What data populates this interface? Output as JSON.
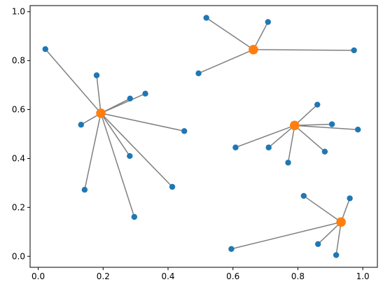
{
  "chart_data": {
    "type": "scatter",
    "title": "",
    "xlabel": "",
    "ylabel": "",
    "xlim": [
      -0.025,
      1.045
    ],
    "ylim": [
      -0.045,
      1.025
    ],
    "xticks": [
      0.0,
      0.2,
      0.4,
      0.6,
      0.8,
      1.0
    ],
    "yticks": [
      0.0,
      0.2,
      0.4,
      0.6,
      0.8,
      1.0
    ],
    "xtick_labels": [
      "0.0",
      "0.2",
      "0.4",
      "0.6",
      "0.8",
      "1.0"
    ],
    "ytick_labels": [
      "0.0",
      "0.2",
      "0.4",
      "0.6",
      "0.8",
      "1.0"
    ],
    "grid": false,
    "colors": {
      "points": "#1f77b4",
      "centers": "#ff7f0e",
      "edges": "#808080"
    },
    "clusters": [
      {
        "center": [
          0.193,
          0.585
        ],
        "points": [
          [
            0.022,
            0.847
          ],
          [
            0.18,
            0.74
          ],
          [
            0.283,
            0.645
          ],
          [
            0.33,
            0.665
          ],
          [
            0.132,
            0.538
          ],
          [
            0.45,
            0.512
          ],
          [
            0.282,
            0.41
          ],
          [
            0.143,
            0.272
          ],
          [
            0.413,
            0.284
          ],
          [
            0.296,
            0.161
          ]
        ]
      },
      {
        "center": [
          0.663,
          0.845
        ],
        "points": [
          [
            0.518,
            0.975
          ],
          [
            0.708,
            0.958
          ],
          [
            0.494,
            0.748
          ],
          [
            0.973,
            0.842
          ]
        ]
      },
      {
        "center": [
          0.79,
          0.535
        ],
        "points": [
          [
            0.86,
            0.62
          ],
          [
            0.905,
            0.54
          ],
          [
            0.985,
            0.518
          ],
          [
            0.608,
            0.445
          ],
          [
            0.71,
            0.445
          ],
          [
            0.883,
            0.428
          ],
          [
            0.77,
            0.383
          ]
        ]
      },
      {
        "center": [
          0.933,
          0.14
        ],
        "points": [
          [
            0.818,
            0.247
          ],
          [
            0.96,
            0.237
          ],
          [
            0.595,
            0.03
          ],
          [
            0.862,
            0.05
          ],
          [
            0.918,
            0.005
          ]
        ]
      }
    ]
  }
}
